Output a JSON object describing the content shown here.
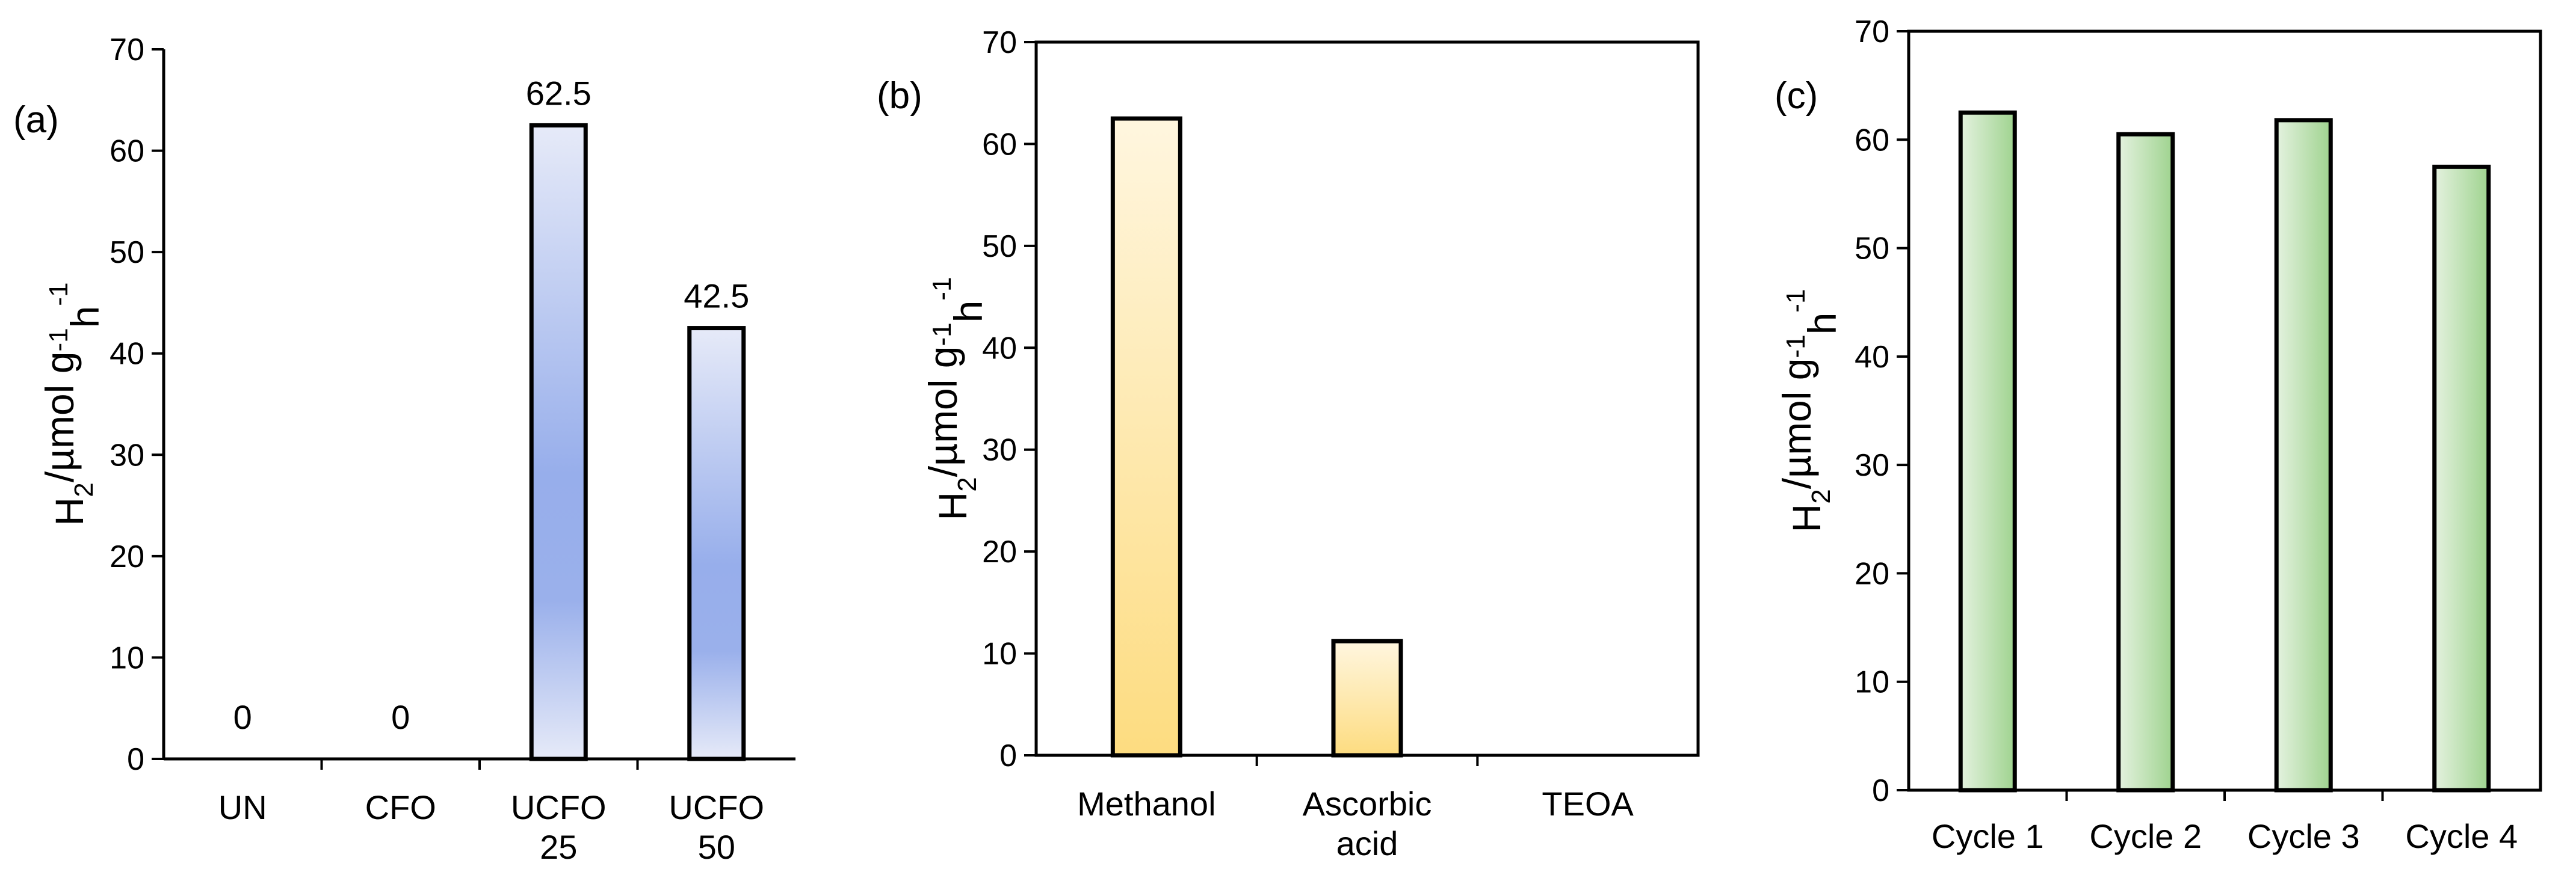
{
  "chart_data": [
    {
      "type": "bar",
      "panel_label": "(a)",
      "categories": [
        [
          "UN"
        ],
        [
          "CFO"
        ],
        [
          "UCFO",
          "25"
        ],
        [
          "UCFO",
          "50"
        ]
      ],
      "values": [
        0,
        0,
        62.5,
        42.5
      ],
      "data_labels": [
        "0",
        "0",
        "62.5",
        "42.5"
      ],
      "ylabel": {
        "main": "H",
        "sub": "2",
        "rest": "/µmol g",
        "sup1": "-1",
        "mid": "h",
        "sup2": "-1"
      },
      "ylim": [
        0,
        70
      ],
      "yticks": [
        "0",
        "10",
        "20",
        "30",
        "40",
        "50",
        "60",
        "70"
      ],
      "frame": "open",
      "color": "#9fb4ee"
    },
    {
      "type": "bar",
      "panel_label": "(b)",
      "categories": [
        [
          "Methanol"
        ],
        [
          "Ascorbic",
          "acid"
        ],
        [
          "TEOA"
        ]
      ],
      "values": [
        62.5,
        11.2,
        0
      ],
      "ylabel": {
        "main": "H",
        "sub": "2",
        "rest": "/µmol g",
        "sup1": "-1",
        "mid": "h",
        "sup2": "-1"
      },
      "ylim": [
        0,
        70
      ],
      "yticks": [
        "0",
        "10",
        "20",
        "30",
        "40",
        "50",
        "60",
        "70"
      ],
      "frame": "box",
      "color": "#fddc86"
    },
    {
      "type": "bar",
      "panel_label": "(c)",
      "categories": [
        [
          "Cycle 1"
        ],
        [
          "Cycle 2"
        ],
        [
          "Cycle 3"
        ],
        [
          "Cycle 4"
        ]
      ],
      "values": [
        62.5,
        60.5,
        61.8,
        57.5
      ],
      "ylabel": {
        "main": "H",
        "sub": "2",
        "rest": "/µmol g",
        "sup1": "-1",
        "mid": "h",
        "sup2": "-1"
      },
      "ylim": [
        0,
        70
      ],
      "yticks": [
        "0",
        "10",
        "20",
        "30",
        "40",
        "50",
        "60",
        "70"
      ],
      "frame": "box",
      "color": "#a9d99b"
    }
  ]
}
